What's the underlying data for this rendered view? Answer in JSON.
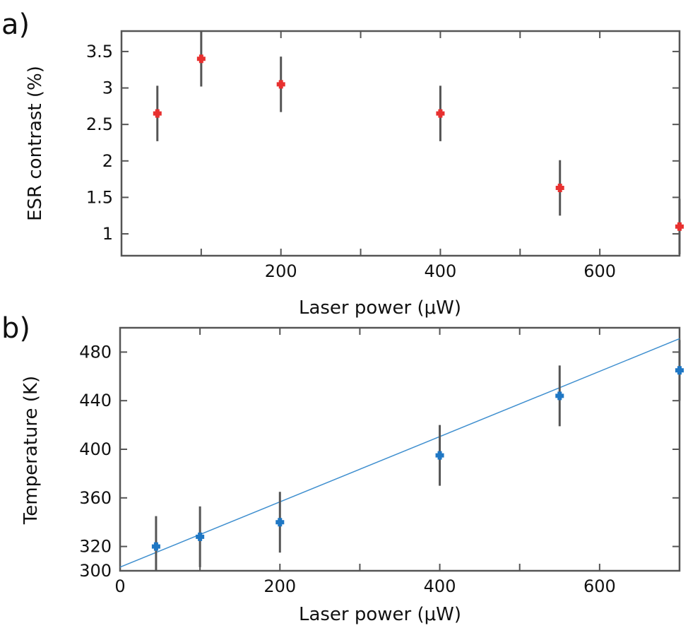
{
  "chart_data": [
    {
      "panel_label": "a)",
      "type": "scatter",
      "xlabel": "Laser power (μW)",
      "ylabel": "ESR contrast (%)",
      "xlim": [
        0,
        700
      ],
      "ylim": [
        0.7,
        3.78
      ],
      "xticks": [
        100,
        200,
        300,
        400,
        500,
        600,
        700
      ],
      "xticklabels": [
        "",
        "200",
        "",
        "400",
        "",
        "600",
        ""
      ],
      "yticks": [
        1,
        1.5,
        2,
        2.5,
        3,
        3.5
      ],
      "yticklabels": [
        "1",
        "1.5",
        "2",
        "2.5",
        "3",
        "3.5"
      ],
      "grid": false,
      "series": [
        {
          "color": "#e8302f",
          "x": [
            45,
            100,
            200,
            400,
            550,
            700
          ],
          "y": [
            2.65,
            3.4,
            3.05,
            2.65,
            1.63,
            1.1
          ],
          "err": [
            0.38,
            0.38,
            0.38,
            0.38,
            0.38,
            0.38
          ]
        }
      ]
    },
    {
      "panel_label": "b)",
      "type": "scatter",
      "xlabel": "Laser power (μW)",
      "ylabel": "Temperature (K)",
      "xlim": [
        0,
        700
      ],
      "ylim": [
        300,
        500
      ],
      "xticks": [
        0,
        100,
        200,
        300,
        400,
        500,
        600,
        700
      ],
      "xticklabels": [
        "0",
        "",
        "200",
        "",
        "400",
        "",
        "600",
        ""
      ],
      "yticks": [
        300,
        320,
        360,
        400,
        440,
        480
      ],
      "yticklabels": [
        "300",
        "320",
        "360",
        "400",
        "440",
        "480"
      ],
      "grid": false,
      "series": [
        {
          "color": "#1f77c4",
          "x": [
            45,
            100,
            200,
            400,
            550,
            700
          ],
          "y": [
            320,
            328,
            340,
            395,
            444,
            465
          ],
          "err": [
            25,
            25,
            25,
            25,
            25,
            25
          ]
        }
      ],
      "fit_line": {
        "color": "#3f8fcf",
        "x": [
          0,
          700
        ],
        "y": [
          303,
          491
        ]
      }
    }
  ]
}
